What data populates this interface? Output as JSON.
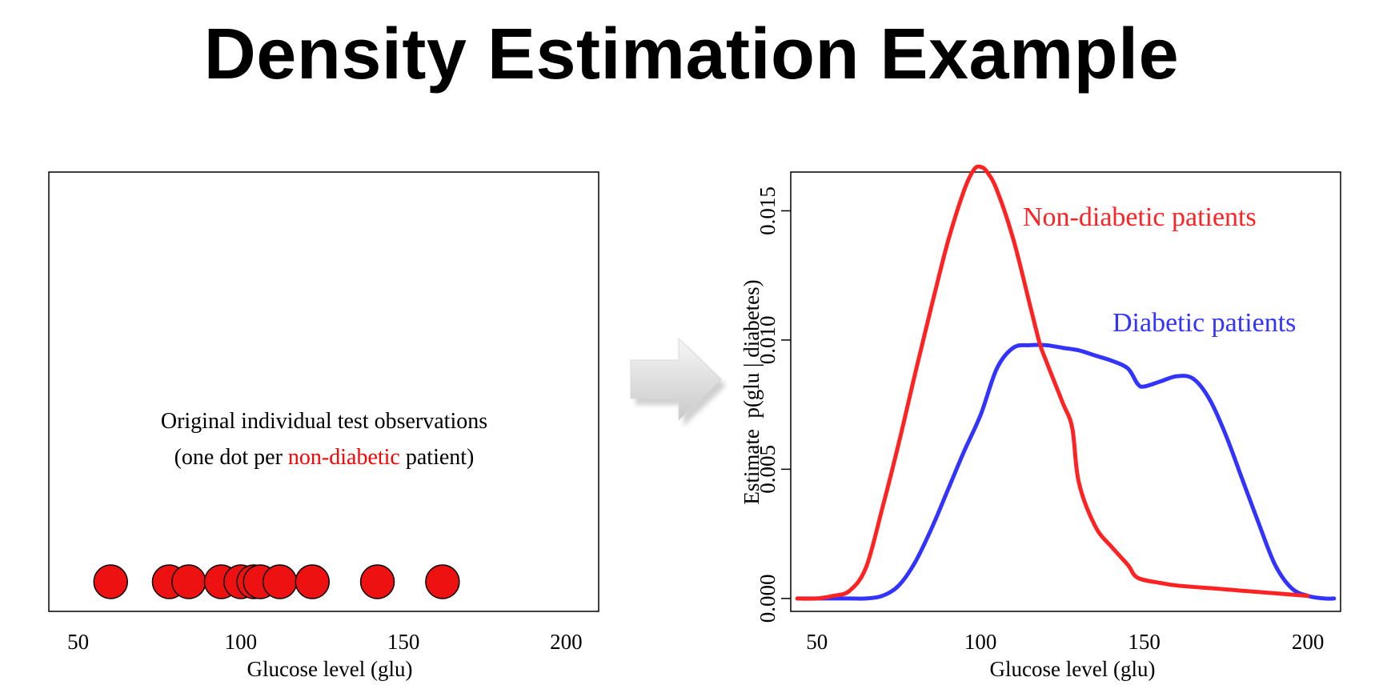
{
  "slide": {
    "title": "Density Estimation Example"
  },
  "chart_data": [
    {
      "type": "scatter",
      "title": "",
      "xlabel": "Glucose level (glu)",
      "ylabel": "",
      "xlim": [
        41,
        210
      ],
      "x_ticks": [
        50,
        100,
        150,
        200
      ],
      "annotation_lines": [
        [
          {
            "text": "Original individual test observations",
            "color": "#000000"
          }
        ],
        [
          {
            "text": "(one dot per ",
            "color": "#000000"
          },
          {
            "text": "non-diabetic",
            "color": "#ff0000"
          },
          {
            "text": " patient)",
            "color": "#000000"
          }
        ]
      ],
      "point_color": "#ee1111",
      "series": [
        {
          "values": [
            60,
            78,
            84,
            94,
            100,
            104,
            106,
            112,
            122,
            142,
            162
          ]
        }
      ]
    },
    {
      "type": "line",
      "title": "",
      "xlabel": "Glucose level (glu)",
      "ylabel": "Estimate  p(glu | diabetes)",
      "xlim": [
        42,
        210
      ],
      "ylim": [
        -0.0005,
        0.0165
      ],
      "x_ticks": [
        50,
        100,
        150,
        200
      ],
      "y_ticks": [
        "0.000",
        "0.005",
        "0.010",
        "0.015"
      ],
      "series": [
        {
          "name": "Non-diabetic patients",
          "color": "#ff2222",
          "x": [
            44,
            50,
            55,
            60,
            65,
            70,
            75,
            80,
            85,
            90,
            95,
            98,
            100,
            102,
            105,
            110,
            115,
            118,
            120,
            125,
            128,
            130,
            135,
            140,
            145,
            148,
            155,
            160,
            170,
            180,
            190,
            200
          ],
          "y": [
            0.0,
            0.0,
            0.0001,
            0.0003,
            0.0012,
            0.0035,
            0.006,
            0.0087,
            0.0113,
            0.0138,
            0.0158,
            0.0166,
            0.0167,
            0.0165,
            0.0158,
            0.0139,
            0.0114,
            0.0099,
            0.0092,
            0.0076,
            0.0066,
            0.0045,
            0.0028,
            0.002,
            0.0013,
            0.0008,
            0.0006,
            0.0005,
            0.0004,
            0.0003,
            0.0002,
            0.0001
          ]
        },
        {
          "name": "Diabetic patients",
          "color": "#3333ff",
          "x": [
            44,
            50,
            60,
            65,
            70,
            75,
            80,
            85,
            90,
            95,
            100,
            105,
            110,
            115,
            120,
            125,
            130,
            135,
            140,
            145,
            148,
            150,
            155,
            160,
            165,
            170,
            175,
            180,
            185,
            190,
            195,
            200,
            205,
            208
          ],
          "y": [
            0.0,
            0.0,
            0.0,
            0.0,
            0.0001,
            0.0005,
            0.0014,
            0.0027,
            0.0042,
            0.0057,
            0.0071,
            0.0089,
            0.0097,
            0.0098,
            0.0098,
            0.0097,
            0.0096,
            0.0094,
            0.0092,
            0.0089,
            0.0083,
            0.0082,
            0.0084,
            0.0086,
            0.0085,
            0.0077,
            0.0063,
            0.0046,
            0.0029,
            0.0013,
            0.0004,
            0.0001,
            0.0,
            0.0
          ]
        }
      ]
    }
  ]
}
